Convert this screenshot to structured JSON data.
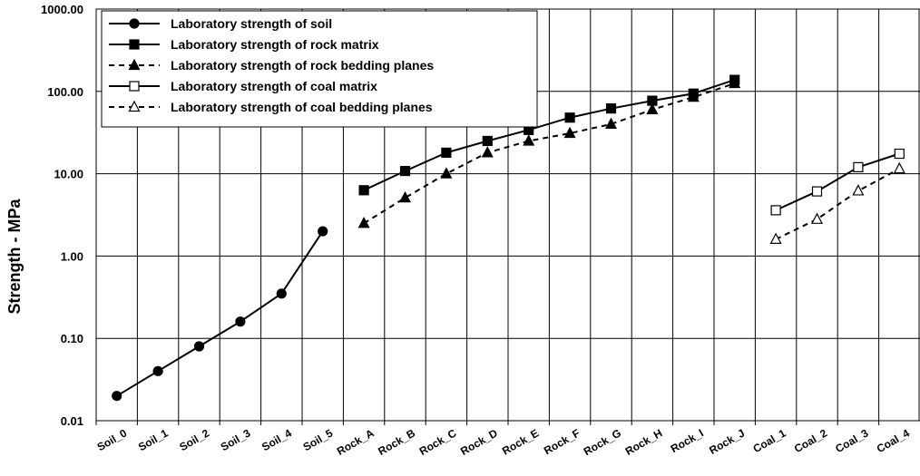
{
  "chart_data": {
    "type": "line",
    "y_scale": "log",
    "ylabel": "Strength - MPa",
    "xlabel": "",
    "ylim": [
      0.01,
      1000
    ],
    "y_ticks": [
      "0.01",
      "0.10",
      "1.00",
      "10.00",
      "100.00",
      "1000.00"
    ],
    "y_tick_values": [
      0.01,
      0.1,
      1,
      10,
      100,
      1000
    ],
    "grid": true,
    "legend_position": "top-left",
    "categories": [
      "Soil_0",
      "Soil_1",
      "Soil_2",
      "Soil_3",
      "Soil_4",
      "Soil_5",
      "Rock_A",
      "Rock_B",
      "Rock_C",
      "Rock_D",
      "Rock_E",
      "Rock_F",
      "Rock_G",
      "Rock_H",
      "Rock_I",
      "Rock_J",
      "Coal_1",
      "Coal_2",
      "Coal_3",
      "Coal_4"
    ],
    "series": [
      {
        "name": "Laboratory strength of soil",
        "marker": "circle-filled",
        "line": "solid",
        "x": [
          "Soil_0",
          "Soil_1",
          "Soil_2",
          "Soil_3",
          "Soil_4",
          "Soil_5"
        ],
        "values": [
          0.02,
          0.04,
          0.08,
          0.16,
          0.35,
          2.0
        ]
      },
      {
        "name": "Laboratory strength of rock matrix",
        "marker": "square-filled",
        "line": "solid",
        "x": [
          "Rock_A",
          "Rock_B",
          "Rock_C",
          "Rock_D",
          "Rock_E",
          "Rock_F",
          "Rock_G",
          "Rock_H",
          "Rock_I",
          "Rock_J"
        ],
        "values": [
          6.3,
          10.8,
          18,
          25,
          34,
          48,
          62,
          77,
          94,
          138
        ]
      },
      {
        "name": "Laboratory strength of rock bedding planes",
        "marker": "triangle-filled",
        "line": "dashed",
        "x": [
          "Rock_A",
          "Rock_B",
          "Rock_C",
          "Rock_D",
          "Rock_E",
          "Rock_F",
          "Rock_G",
          "Rock_H",
          "Rock_I",
          "Rock_J"
        ],
        "values": [
          2.5,
          5.1,
          10,
          18,
          25,
          31,
          40,
          60,
          85,
          125
        ]
      },
      {
        "name": "Laboratory strength of coal matrix",
        "marker": "square-open",
        "line": "solid",
        "x": [
          "Coal_1",
          "Coal_2",
          "Coal_3",
          "Coal_4"
        ],
        "values": [
          3.6,
          6.1,
          12,
          17.5
        ]
      },
      {
        "name": "Laboratory strength of coal bedding planes",
        "marker": "triangle-open",
        "line": "dashed",
        "x": [
          "Coal_1",
          "Coal_2",
          "Coal_3",
          "Coal_4"
        ],
        "values": [
          1.6,
          2.8,
          6.2,
          11.5
        ]
      }
    ]
  }
}
